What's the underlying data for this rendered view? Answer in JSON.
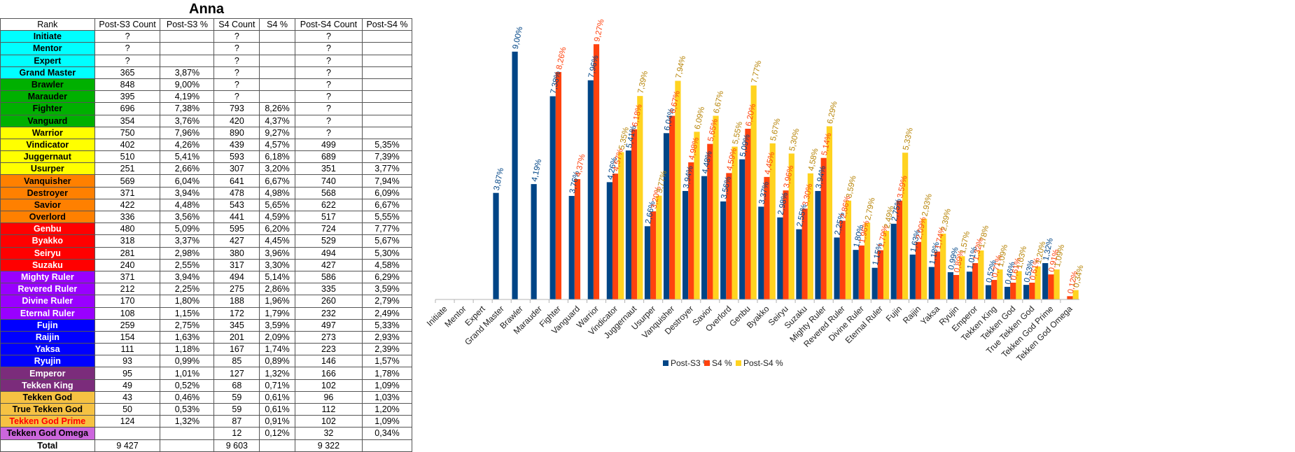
{
  "sheet": {
    "title": "Anna",
    "headers": [
      "Rank",
      "Post-S3 Count",
      "Post-S3 %",
      "S4 Count",
      "S4 %",
      "Post-S4 Count",
      "Post-S4 %"
    ],
    "rows": [
      {
        "rank": "Initiate",
        "bg": "#00ffff",
        "fg": "#000000",
        "c1": "?",
        "p1": "",
        "c2": "?",
        "p2": "",
        "c3": "?",
        "p3": ""
      },
      {
        "rank": "Mentor",
        "bg": "#00ffff",
        "fg": "#000000",
        "c1": "?",
        "p1": "",
        "c2": "?",
        "p2": "",
        "c3": "?",
        "p3": ""
      },
      {
        "rank": "Expert",
        "bg": "#00ffff",
        "fg": "#000000",
        "c1": "?",
        "p1": "",
        "c2": "?",
        "p2": "",
        "c3": "?",
        "p3": ""
      },
      {
        "rank": "Grand Master",
        "bg": "#00ffff",
        "fg": "#000000",
        "c1": "365",
        "p1": "3,87%",
        "c2": "?",
        "p2": "",
        "c3": "?",
        "p3": ""
      },
      {
        "rank": "Brawler",
        "bg": "#00b000",
        "fg": "#000000",
        "c1": "848",
        "p1": "9,00%",
        "c2": "?",
        "p2": "",
        "c3": "?",
        "p3": ""
      },
      {
        "rank": "Marauder",
        "bg": "#00b000",
        "fg": "#000000",
        "c1": "395",
        "p1": "4,19%",
        "c2": "?",
        "p2": "",
        "c3": "?",
        "p3": ""
      },
      {
        "rank": "Fighter",
        "bg": "#00b000",
        "fg": "#000000",
        "c1": "696",
        "p1": "7,38%",
        "c2": "793",
        "p2": "8,26%",
        "c3": "?",
        "p3": ""
      },
      {
        "rank": "Vanguard",
        "bg": "#00b000",
        "fg": "#000000",
        "c1": "354",
        "p1": "3,76%",
        "c2": "420",
        "p2": "4,37%",
        "c3": "?",
        "p3": ""
      },
      {
        "rank": "Warrior",
        "bg": "#ffff00",
        "fg": "#000000",
        "c1": "750",
        "p1": "7,96%",
        "c2": "890",
        "p2": "9,27%",
        "c3": "?",
        "p3": ""
      },
      {
        "rank": "Vindicator",
        "bg": "#ffff00",
        "fg": "#000000",
        "c1": "402",
        "p1": "4,26%",
        "c2": "439",
        "p2": "4,57%",
        "c3": "499",
        "p3": "5,35%"
      },
      {
        "rank": "Juggernaut",
        "bg": "#ffff00",
        "fg": "#000000",
        "c1": "510",
        "p1": "5,41%",
        "c2": "593",
        "p2": "6,18%",
        "c3": "689",
        "p3": "7,39%"
      },
      {
        "rank": "Usurper",
        "bg": "#ffff00",
        "fg": "#000000",
        "c1": "251",
        "p1": "2,66%",
        "c2": "307",
        "p2": "3,20%",
        "c3": "351",
        "p3": "3,77%"
      },
      {
        "rank": "Vanquisher",
        "bg": "#ff8000",
        "fg": "#000000",
        "c1": "569",
        "p1": "6,04%",
        "c2": "641",
        "p2": "6,67%",
        "c3": "740",
        "p3": "7,94%"
      },
      {
        "rank": "Destroyer",
        "bg": "#ff8000",
        "fg": "#000000",
        "c1": "371",
        "p1": "3,94%",
        "c2": "478",
        "p2": "4,98%",
        "c3": "568",
        "p3": "6,09%"
      },
      {
        "rank": "Savior",
        "bg": "#ff8000",
        "fg": "#000000",
        "c1": "422",
        "p1": "4,48%",
        "c2": "543",
        "p2": "5,65%",
        "c3": "622",
        "p3": "6,67%"
      },
      {
        "rank": "Overlord",
        "bg": "#ff8000",
        "fg": "#000000",
        "c1": "336",
        "p1": "3,56%",
        "c2": "441",
        "p2": "4,59%",
        "c3": "517",
        "p3": "5,55%"
      },
      {
        "rank": "Genbu",
        "bg": "#ff0000",
        "fg": "#ffffff",
        "c1": "480",
        "p1": "5,09%",
        "c2": "595",
        "p2": "6,20%",
        "c3": "724",
        "p3": "7,77%"
      },
      {
        "rank": "Byakko",
        "bg": "#ff0000",
        "fg": "#ffffff",
        "c1": "318",
        "p1": "3,37%",
        "c2": "427",
        "p2": "4,45%",
        "c3": "529",
        "p3": "5,67%"
      },
      {
        "rank": "Seiryu",
        "bg": "#ff0000",
        "fg": "#ffffff",
        "c1": "281",
        "p1": "2,98%",
        "c2": "380",
        "p2": "3,96%",
        "c3": "494",
        "p3": "5,30%"
      },
      {
        "rank": "Suzaku",
        "bg": "#ff0000",
        "fg": "#ffffff",
        "c1": "240",
        "p1": "2,55%",
        "c2": "317",
        "p2": "3,30%",
        "c3": "427",
        "p3": "4,58%"
      },
      {
        "rank": "Mighty Ruler",
        "bg": "#9900ff",
        "fg": "#ffffff",
        "c1": "371",
        "p1": "3,94%",
        "c2": "494",
        "p2": "5,14%",
        "c3": "586",
        "p3": "6,29%"
      },
      {
        "rank": "Revered Ruler",
        "bg": "#9900ff",
        "fg": "#ffffff",
        "c1": "212",
        "p1": "2,25%",
        "c2": "275",
        "p2": "2,86%",
        "c3": "335",
        "p3": "3,59%"
      },
      {
        "rank": "Divine Ruler",
        "bg": "#9900ff",
        "fg": "#ffffff",
        "c1": "170",
        "p1": "1,80%",
        "c2": "188",
        "p2": "1,96%",
        "c3": "260",
        "p3": "2,79%"
      },
      {
        "rank": "Eternal Ruler",
        "bg": "#9900ff",
        "fg": "#ffffff",
        "c1": "108",
        "p1": "1,15%",
        "c2": "172",
        "p2": "1,79%",
        "c3": "232",
        "p3": "2,49%"
      },
      {
        "rank": "Fujin",
        "bg": "#0000ff",
        "fg": "#ffffff",
        "c1": "259",
        "p1": "2,75%",
        "c2": "345",
        "p2": "3,59%",
        "c3": "497",
        "p3": "5,33%"
      },
      {
        "rank": "Raijin",
        "bg": "#0000ff",
        "fg": "#ffffff",
        "c1": "154",
        "p1": "1,63%",
        "c2": "201",
        "p2": "2,09%",
        "c3": "273",
        "p3": "2,93%"
      },
      {
        "rank": "Yaksa",
        "bg": "#0000ff",
        "fg": "#ffffff",
        "c1": "111",
        "p1": "1,18%",
        "c2": "167",
        "p2": "1,74%",
        "c3": "223",
        "p3": "2,39%"
      },
      {
        "rank": "Ryujin",
        "bg": "#0000ff",
        "fg": "#ffffff",
        "c1": "93",
        "p1": "0,99%",
        "c2": "85",
        "p2": "0,89%",
        "c3": "146",
        "p3": "1,57%"
      },
      {
        "rank": "Emperor",
        "bg": "#7b2c7b",
        "fg": "#ffffff",
        "c1": "95",
        "p1": "1,01%",
        "c2": "127",
        "p2": "1,32%",
        "c3": "166",
        "p3": "1,78%"
      },
      {
        "rank": "Tekken King",
        "bg": "#7b2c7b",
        "fg": "#ffffff",
        "c1": "49",
        "p1": "0,52%",
        "c2": "68",
        "p2": "0,71%",
        "c3": "102",
        "p3": "1,09%"
      },
      {
        "rank": "Tekken God",
        "bg": "#f6c243",
        "fg": "#000000",
        "c1": "43",
        "p1": "0,46%",
        "c2": "59",
        "p2": "0,61%",
        "c3": "96",
        "p3": "1,03%"
      },
      {
        "rank": "True Tekken God",
        "bg": "#f6c243",
        "fg": "#000000",
        "c1": "50",
        "p1": "0,53%",
        "c2": "59",
        "p2": "0,61%",
        "c3": "112",
        "p3": "1,20%"
      },
      {
        "rank": "Tekken God Prime",
        "bg": "#f6c243",
        "fg": "#ff0000",
        "c1": "124",
        "p1": "1,32%",
        "c2": "87",
        "p2": "0,91%",
        "c3": "102",
        "p3": "1,09%"
      },
      {
        "rank": "Tekken God Omega",
        "bg": "#cc66dd",
        "fg": "#000000",
        "c1": "",
        "p1": "",
        "c2": "12",
        "p2": "0,12%",
        "c3": "32",
        "p3": "0,34%"
      }
    ],
    "total": {
      "label": "Total",
      "c1": "9 427",
      "c2": "9 603",
      "c3": "9 322"
    }
  },
  "chart_data": {
    "type": "bar",
    "categories": [
      "Initiate",
      "Mentor",
      "Expert",
      "Grand Master",
      "Brawler",
      "Marauder",
      "Fighter",
      "Vanguard",
      "Warrior",
      "Vindicator",
      "Juggernaut",
      "Usurper",
      "Vanquisher",
      "Destroyer",
      "Savior",
      "Overlord",
      "Genbu",
      "Byakko",
      "Seiryu",
      "Suzaku",
      "Mighty Ruler",
      "Revered Ruler",
      "Divine Ruler",
      "Eternal Ruler",
      "Fujin",
      "Raijin",
      "Yaksa",
      "Ryujin",
      "Emperor",
      "Tekken King",
      "Tekken God",
      "True Tekken God",
      "Tekken God Prime",
      "Tekken God Omega"
    ],
    "series": [
      {
        "name": "Post-S3 %",
        "color": "#004586",
        "labelColor": "#004586",
        "values": [
          null,
          null,
          null,
          3.87,
          9.0,
          4.19,
          7.38,
          3.76,
          7.96,
          4.26,
          5.41,
          2.66,
          6.04,
          3.94,
          4.48,
          3.56,
          5.09,
          3.37,
          2.98,
          2.55,
          3.94,
          2.25,
          1.8,
          1.15,
          2.75,
          1.63,
          1.18,
          0.99,
          1.01,
          0.52,
          0.46,
          0.53,
          1.32,
          null
        ],
        "labels": [
          "",
          "",
          "",
          "3,87%",
          "9,00%",
          "4,19%",
          "7,38%",
          "3,76%",
          "7,96%",
          "4,26%",
          "5,41%",
          "2,66%",
          "6,04%",
          "3,94%",
          "4,48%",
          "3,56%",
          "5,09%",
          "3,37%",
          "2,98%",
          "2,55%",
          "3,94%",
          "2,25%",
          "1,80%",
          "1,15%",
          "2,75%",
          "1,63%",
          "1,18%",
          "0,99%",
          "1,01%",
          "0,52%",
          "0,46%",
          "0,53%",
          "1,32%",
          ""
        ]
      },
      {
        "name": "S4 %",
        "color": "#ff420e",
        "labelColor": "#ff420e",
        "values": [
          null,
          null,
          null,
          null,
          null,
          null,
          8.26,
          4.37,
          9.27,
          4.57,
          6.18,
          3.2,
          6.67,
          4.98,
          5.65,
          4.59,
          6.2,
          4.45,
          3.96,
          3.3,
          5.14,
          2.86,
          1.96,
          1.79,
          3.59,
          2.09,
          1.74,
          0.89,
          1.32,
          0.71,
          0.61,
          0.61,
          0.91,
          0.12
        ],
        "labels": [
          "",
          "",
          "",
          "",
          "",
          "",
          "8,26%",
          "4,37%",
          "9,27%",
          "4,57%",
          "6,18%",
          "3,20%",
          "6,67%",
          "4,98%",
          "5,65%",
          "4,59%",
          "6,20%",
          "4,45%",
          "3,96%",
          "3,30%",
          "5,14%",
          "2,86%",
          "1,96%",
          "1,79%",
          "3,59%",
          "2,09%",
          "1,74%",
          "0,89%",
          "1,32%",
          "0,71%",
          "0,61%",
          "0,61%",
          "0,91%",
          "0,12%"
        ]
      },
      {
        "name": "Post-S4 %",
        "color": "#ffd320",
        "labelColor": "#b8860b",
        "values": [
          null,
          null,
          null,
          null,
          null,
          null,
          null,
          null,
          null,
          5.35,
          7.39,
          3.77,
          7.94,
          6.09,
          6.67,
          5.55,
          7.77,
          5.67,
          5.3,
          4.58,
          6.29,
          3.59,
          2.79,
          2.49,
          5.33,
          2.93,
          2.39,
          1.57,
          1.78,
          1.09,
          1.03,
          1.2,
          1.09,
          0.34
        ],
        "labels": [
          "",
          "",
          "",
          "",
          "",
          "",
          "",
          "",
          "",
          "5,35%",
          "7,39%",
          "3,77%",
          "7,94%",
          "6,09%",
          "6,67%",
          "5,55%",
          "7,77%",
          "5,67%",
          "5,30%",
          "4,58%",
          "6,29%",
          "3,59%",
          "2,79%",
          "2,49%",
          "5,33%",
          "2,93%",
          "2,39%",
          "1,57%",
          "1,78%",
          "1,09%",
          "1,03%",
          "1,20%",
          "1,09%",
          "0,34%"
        ]
      }
    ],
    "ylim": [
      0,
      9.3
    ],
    "legend": "bottom",
    "grid": false
  }
}
